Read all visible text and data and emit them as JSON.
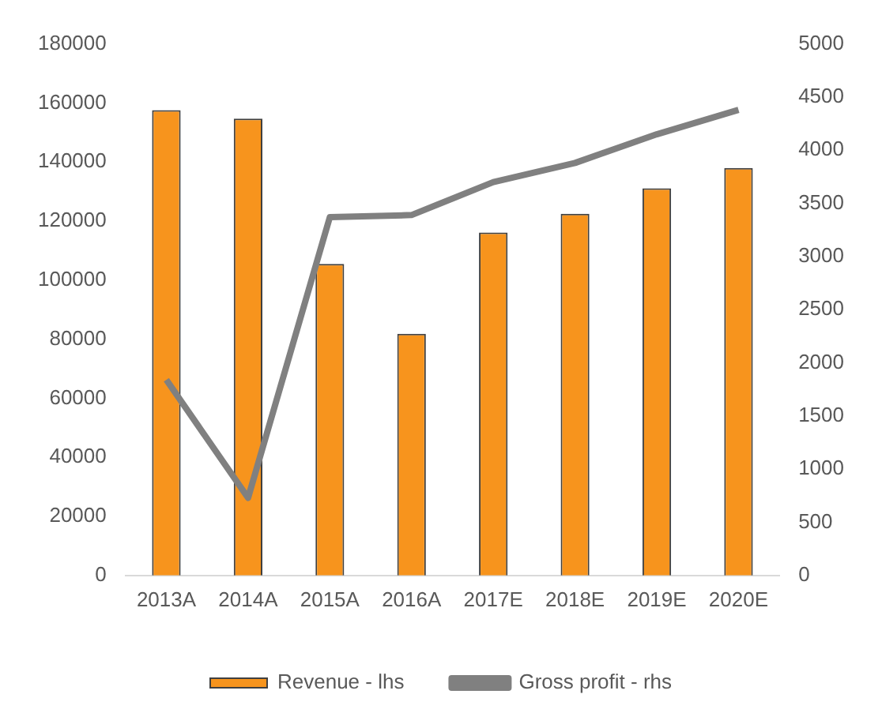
{
  "chart_data": {
    "type": "bar",
    "categories": [
      "2013A",
      "2014A",
      "2015A",
      "2016A",
      "2017E",
      "2018E",
      "2019E",
      "2020E"
    ],
    "series": [
      {
        "name": "Revenue - lhs",
        "color": "#f7941d",
        "values": [
          157600,
          154700,
          105500,
          81800,
          116100,
          122500,
          131100,
          138000
        ]
      },
      {
        "name": "Gross profit - rhs",
        "type": "line",
        "axis": "y2",
        "color": "#808080",
        "values": [
          1840,
          730,
          3370,
          3390,
          3700,
          3880,
          4150,
          4380
        ]
      }
    ],
    "ylim": [
      0,
      180000
    ],
    "yticks": [
      0,
      20000,
      40000,
      60000,
      80000,
      100000,
      120000,
      140000,
      160000,
      180000
    ],
    "y2lim": [
      0,
      5000
    ],
    "y2ticks": [
      0,
      500,
      1000,
      1500,
      2000,
      2500,
      3000,
      3500,
      4000,
      4500,
      5000
    ],
    "grid": false,
    "legend": "bottom",
    "marker": "none"
  }
}
